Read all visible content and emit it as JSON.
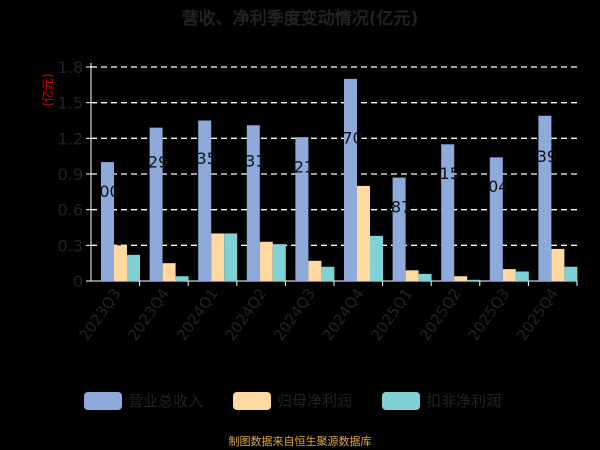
{
  "chart_data": {
    "type": "bar",
    "title": "营收、净利季度变动情况(亿元)",
    "ylabel": "(亿元)",
    "ylim": [
      0,
      1.8
    ],
    "yticks": [
      "0",
      "0.3",
      "0.6",
      "0.9",
      "1.2",
      "1.5",
      "1.8"
    ],
    "categories": [
      "2023Q3",
      "2023Q4",
      "2024Q1",
      "2024Q2",
      "2024Q3",
      "2024Q4",
      "2025Q1",
      "2025Q2",
      "2025Q3",
      "2025Q4"
    ],
    "series": [
      {
        "name": "营业总收入",
        "color": "#8eaadb",
        "values": [
          1.0,
          1.29,
          1.35,
          1.31,
          1.21,
          1.7,
          0.87,
          1.15,
          1.04,
          1.39
        ]
      },
      {
        "name": "归母净利润",
        "color": "#ffd9a0",
        "values": [
          0.3,
          0.15,
          0.4,
          0.33,
          0.17,
          0.8,
          0.09,
          0.04,
          0.1,
          0.27
        ]
      },
      {
        "name": "扣非净利润",
        "color": "#7fd1d6",
        "values": [
          0.22,
          0.04,
          0.4,
          0.31,
          0.12,
          0.38,
          0.06,
          0.01,
          0.08,
          0.12
        ]
      }
    ],
    "data_labels": [
      "00",
      "29",
      "35",
      "31",
      "21",
      "70",
      "87",
      "15",
      "04",
      "39"
    ],
    "grid": true,
    "legend": "bottom"
  },
  "footer": "制图数据来自恒生聚源数据库",
  "colors": {
    "background": "#000000",
    "axis": "#ffffff",
    "grid": "#ffffff",
    "ylabel": "#e00000",
    "footer": "#e3a73a"
  }
}
